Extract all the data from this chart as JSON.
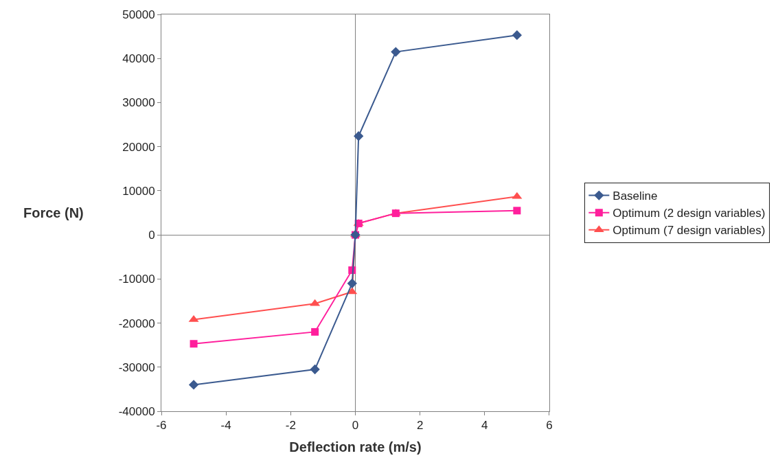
{
  "chart_data": {
    "type": "line",
    "xlabel": "Deflection rate (m/s)",
    "ylabel": "Force (N)",
    "xlim": [
      -6,
      6
    ],
    "xticks": [
      -6,
      -4,
      -2,
      0,
      2,
      4,
      6
    ],
    "ylim": [
      -40000,
      50000
    ],
    "yticks": [
      -40000,
      -30000,
      -20000,
      -10000,
      0,
      10000,
      20000,
      30000,
      40000,
      50000
    ],
    "legend": "right",
    "series": [
      {
        "name": "Baseline",
        "color": "#3b5a8f",
        "marker": "diamond",
        "x": [
          -5,
          -1.25,
          -0.1,
          0,
          0.1,
          1.25,
          5
        ],
        "values": [
          -34000,
          -30500,
          -11000,
          0,
          22400,
          41500,
          45300
        ]
      },
      {
        "name": "Optimum (2 design variables)",
        "color": "#ff1f9c",
        "marker": "square",
        "x": [
          -5,
          -1.25,
          -0.1,
          0,
          0.1,
          1.25,
          5
        ],
        "values": [
          -24700,
          -22000,
          -8000,
          0,
          2600,
          4900,
          5500
        ]
      },
      {
        "name": "Optimum (7 design variables)",
        "color": "#ff4f4f",
        "marker": "triangle",
        "x": [
          -5,
          -1.25,
          -0.1,
          0,
          0.1,
          1.25,
          5
        ],
        "values": [
          -19200,
          -15600,
          -12900,
          0,
          2600,
          4900,
          8700
        ]
      }
    ]
  }
}
